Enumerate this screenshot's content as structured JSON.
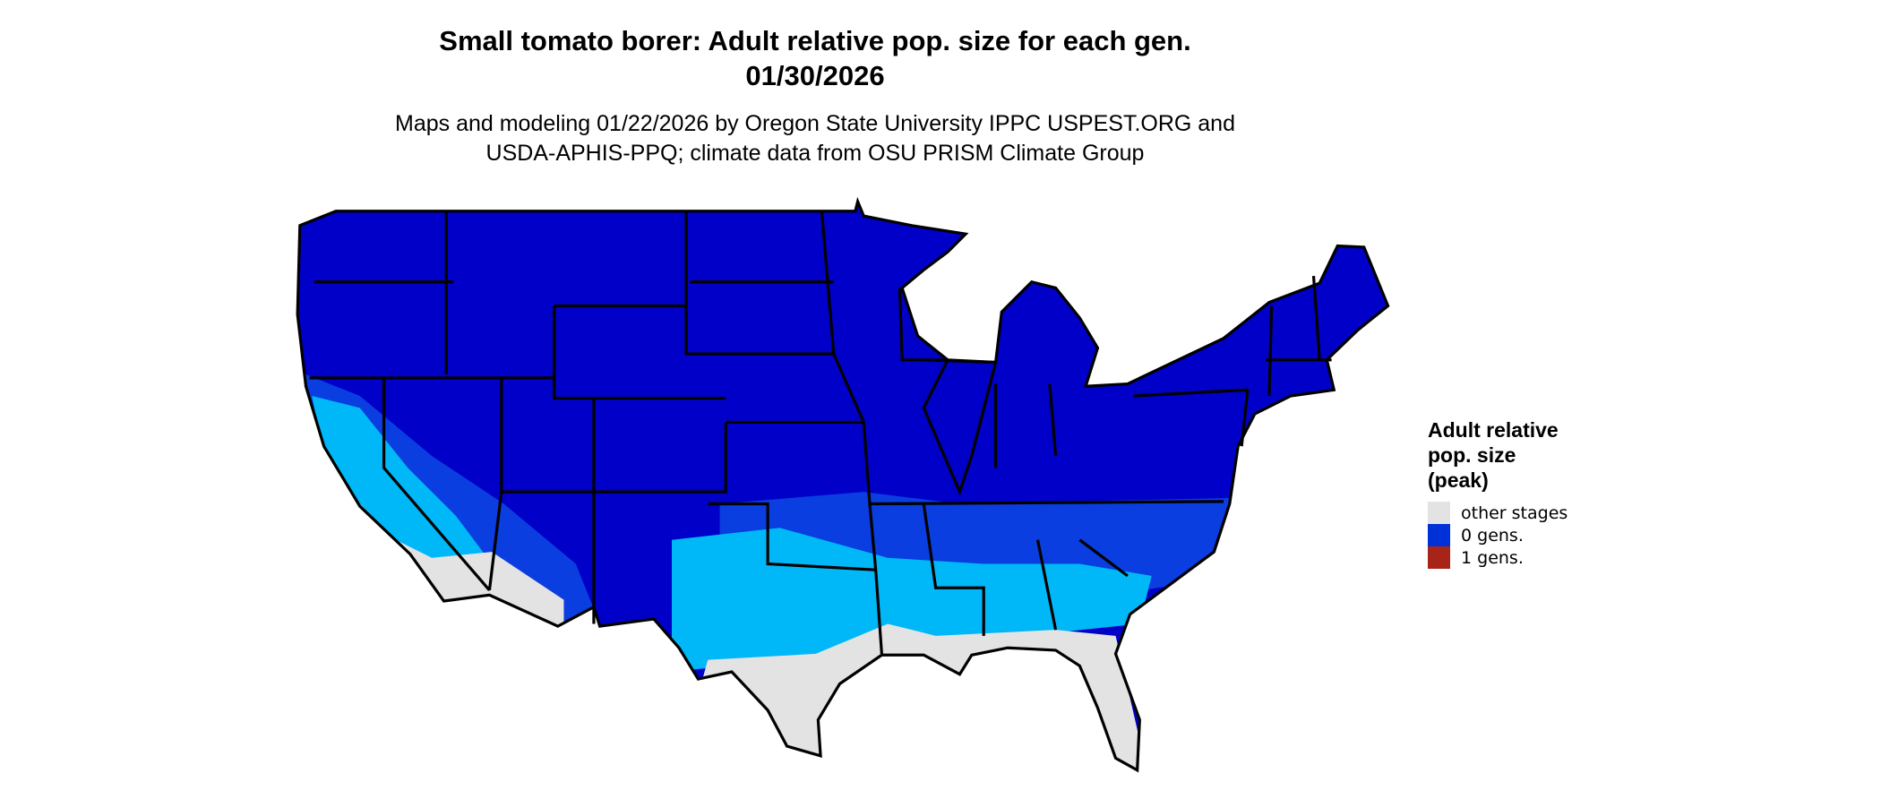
{
  "header": {
    "title": "Small tomato borer: Adult relative pop. size for each gen.",
    "date": "01/30/2026",
    "subtitle_line1": "Maps and modeling 01/22/2026 by Oregon State University IPPC USPEST.ORG and",
    "subtitle_line2": "USDA-APHIS-PPQ; climate data from OSU PRISM Climate Group"
  },
  "legend": {
    "title_line1": "Adult relative",
    "title_line2": "pop. size",
    "title_line3": "(peak)",
    "items": [
      {
        "label": "other stages",
        "color": "#e3e3e3"
      },
      {
        "label": "0 gens.",
        "color": "#0030d8"
      },
      {
        "label": "1 gens.",
        "color": "#a82418"
      }
    ]
  },
  "map": {
    "region": "Contiguous United States",
    "colors": {
      "dark_blue": "#0000c8",
      "medium_blue": "#0a3ee0",
      "light_blue": "#00b8f8",
      "gray": "#e3e3e3",
      "border": "#000000"
    }
  }
}
